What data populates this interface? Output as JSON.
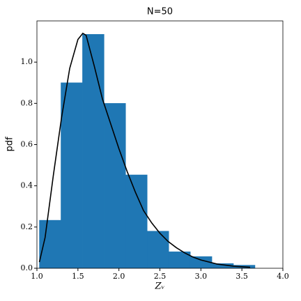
{
  "chart_data": {
    "type": "histogram",
    "title": "N=50",
    "xlabel": "Zᵥ",
    "ylabel": "pdf",
    "bins": [
      1.03,
      1.293,
      1.556,
      1.819,
      2.082,
      2.345,
      2.608,
      2.871,
      3.134,
      3.397,
      3.66
    ],
    "values": [
      0.233,
      0.9,
      1.135,
      0.8,
      0.453,
      0.18,
      0.08,
      0.057,
      0.023,
      0.015
    ],
    "color": "#1f77b4",
    "curve": {
      "color": "#000000",
      "x": [
        1.03,
        1.1,
        1.2,
        1.3,
        1.4,
        1.5,
        1.56,
        1.6,
        1.7,
        1.8,
        1.9,
        2.0,
        2.1,
        2.2,
        2.3,
        2.4,
        2.5,
        2.6,
        2.7,
        2.8,
        2.9,
        3.0,
        3.2,
        3.4,
        3.6
      ],
      "y": [
        0.03,
        0.15,
        0.45,
        0.73,
        0.97,
        1.11,
        1.14,
        1.13,
        0.98,
        0.82,
        0.7,
        0.58,
        0.47,
        0.37,
        0.28,
        0.22,
        0.17,
        0.13,
        0.1,
        0.075,
        0.055,
        0.04,
        0.02,
        0.01,
        0.005
      ]
    },
    "xlim": [
      1.0,
      4.0
    ],
    "ylim": [
      0,
      1.2
    ],
    "xticks": [
      {
        "value": 1,
        "label": "1.0"
      },
      1.5,
      {
        "value": 2,
        "label": "2.0"
      },
      2.5,
      {
        "value": 3,
        "label": "3.0"
      },
      3.5,
      {
        "value": 4,
        "label": "4.0"
      }
    ],
    "yticks": [
      {
        "value": 0,
        "label": "0.0"
      },
      0.2,
      0.4,
      0.6,
      0.8,
      {
        "value": 1,
        "label": "1.0"
      }
    ]
  }
}
